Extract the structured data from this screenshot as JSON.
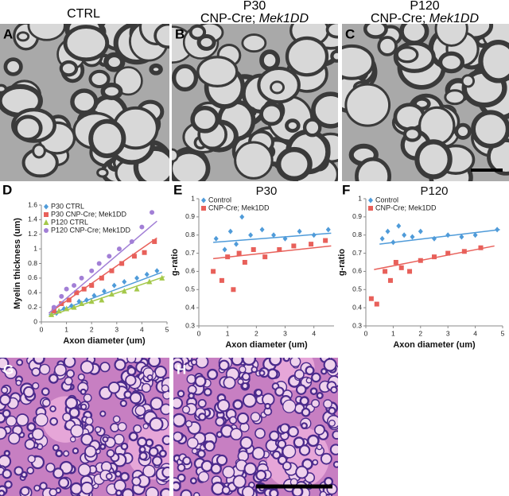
{
  "headers": {
    "a": {
      "line1": "CTRL"
    },
    "b": {
      "line1": "P30",
      "line2": "CNP-Cre;",
      "line2_italic": "Mek1DD"
    },
    "c": {
      "line1": "P120",
      "line2": "CNP-Cre;",
      "line2_italic": "Mek1DD"
    }
  },
  "panel_labels": [
    "A",
    "B",
    "C",
    "D",
    "E",
    "F",
    "G",
    "H"
  ],
  "chart_data": [
    {
      "type": "scatter",
      "xlabel": "Axon diameter (um)",
      "ylabel": "Myelin thickness (um)",
      "xlim": [
        0,
        5
      ],
      "xticks": [
        0,
        1,
        2,
        3,
        4,
        5
      ],
      "ylim": [
        0,
        1.6
      ],
      "yticks": [
        0,
        0.2,
        0.4,
        0.6,
        0.8,
        1,
        1.2,
        1.4,
        1.6
      ],
      "legend": "upper-left",
      "series": [
        {
          "name": "P30 CTRL",
          "color": "#4f9bd9",
          "marker": "diamond",
          "x": [
            0.6,
            0.9,
            1.2,
            1.5,
            1.8,
            2.1,
            2.5,
            2.9,
            3.3,
            3.8,
            4.2,
            4.6
          ],
          "values": [
            0.12,
            0.18,
            0.22,
            0.28,
            0.3,
            0.36,
            0.42,
            0.5,
            0.55,
            0.6,
            0.65,
            0.7
          ],
          "trend": {
            "x": [
              0.3,
              4.8
            ],
            "y": [
              0.1,
              0.68
            ]
          }
        },
        {
          "name": "P30 CNP-Cre; Mek1DD",
          "color": "#e8605a",
          "marker": "square",
          "x": [
            0.5,
            0.8,
            1.1,
            1.4,
            1.7,
            2.0,
            2.4,
            2.8,
            3.2,
            3.7,
            4.1,
            4.5
          ],
          "values": [
            0.15,
            0.25,
            0.3,
            0.4,
            0.45,
            0.5,
            0.6,
            0.7,
            0.8,
            0.9,
            0.95,
            1.1
          ],
          "trend": {
            "x": [
              0.3,
              4.6
            ],
            "y": [
              0.12,
              1.15
            ]
          }
        },
        {
          "name": "P120 CTRL",
          "color": "#a4c84a",
          "marker": "triangle",
          "x": [
            0.4,
            0.7,
            1.0,
            1.3,
            1.6,
            2.0,
            2.4,
            2.8,
            3.3,
            3.8,
            4.3,
            4.8
          ],
          "values": [
            0.1,
            0.15,
            0.18,
            0.2,
            0.25,
            0.28,
            0.3,
            0.38,
            0.42,
            0.45,
            0.55,
            0.6
          ],
          "trend": {
            "x": [
              0.3,
              4.9
            ],
            "y": [
              0.08,
              0.62
            ]
          }
        },
        {
          "name": "P120 CNP-Cre; Mek1DD",
          "color": "#a27fd6",
          "marker": "circle",
          "x": [
            0.5,
            0.8,
            1.0,
            1.3,
            1.6,
            2.0,
            2.3,
            2.7,
            3.1,
            3.6,
            4.0,
            4.4
          ],
          "values": [
            0.2,
            0.35,
            0.45,
            0.5,
            0.6,
            0.7,
            0.8,
            0.9,
            1.0,
            1.1,
            1.3,
            1.5
          ],
          "trend": {
            "x": [
              0.3,
              4.6
            ],
            "y": [
              0.12,
              1.38
            ]
          }
        }
      ]
    },
    {
      "type": "scatter",
      "title": "P30",
      "xlabel": "Axon diameter (um)",
      "ylabel": "g-ratio",
      "xlim": [
        0,
        4.7
      ],
      "xticks": [
        0,
        1,
        2,
        3,
        4
      ],
      "ylim": [
        0.3,
        1
      ],
      "yticks": [
        0.3,
        0.4,
        0.5,
        0.6,
        0.7,
        0.8,
        0.9,
        1
      ],
      "legend": "upper-left",
      "series": [
        {
          "name": "Control",
          "color": "#4f9bd9",
          "marker": "diamond",
          "x": [
            0.6,
            0.9,
            1.1,
            1.3,
            1.5,
            1.8,
            2.2,
            2.6,
            3.0,
            3.5,
            4.0,
            4.5
          ],
          "values": [
            0.78,
            0.72,
            0.82,
            0.75,
            0.9,
            0.8,
            0.83,
            0.8,
            0.78,
            0.82,
            0.8,
            0.83
          ],
          "trend": {
            "x": [
              0.5,
              4.6
            ],
            "y": [
              0.76,
              0.81
            ]
          }
        },
        {
          "name": "CNP-Cre; Mek1DD",
          "color": "#e8605a",
          "marker": "square",
          "x": [
            0.5,
            0.8,
            1.0,
            1.2,
            1.4,
            1.6,
            1.9,
            2.3,
            2.8,
            3.3,
            3.9,
            4.4
          ],
          "values": [
            0.6,
            0.55,
            0.68,
            0.5,
            0.7,
            0.65,
            0.72,
            0.68,
            0.72,
            0.74,
            0.75,
            0.77
          ],
          "trend": {
            "x": [
              0.5,
              4.6
            ],
            "y": [
              0.67,
              0.74
            ]
          }
        }
      ]
    },
    {
      "type": "scatter",
      "title": "P120",
      "xlabel": "Axon diameter (um)",
      "ylabel": "g-ratio",
      "xlim": [
        0,
        5
      ],
      "xticks": [
        0,
        1,
        2,
        3,
        4,
        5
      ],
      "ylim": [
        0.3,
        1
      ],
      "yticks": [
        0.3,
        0.4,
        0.5,
        0.6,
        0.7,
        0.8,
        0.9,
        1
      ],
      "legend": "upper-left",
      "series": [
        {
          "name": "Control",
          "color": "#4f9bd9",
          "marker": "diamond",
          "x": [
            0.6,
            0.8,
            1.0,
            1.2,
            1.4,
            1.7,
            2.0,
            2.5,
            3.0,
            3.5,
            4.0,
            4.8
          ],
          "values": [
            0.78,
            0.82,
            0.76,
            0.85,
            0.8,
            0.79,
            0.82,
            0.78,
            0.8,
            0.79,
            0.8,
            0.83
          ],
          "trend": {
            "x": [
              0.5,
              4.9
            ],
            "y": [
              0.75,
              0.83
            ]
          }
        },
        {
          "name": "CNP-Cre; Mek1DD",
          "color": "#e8605a",
          "marker": "square",
          "x": [
            0.2,
            0.4,
            0.7,
            0.9,
            1.1,
            1.3,
            1.6,
            2.0,
            2.5,
            3.0,
            3.6,
            4.2
          ],
          "values": [
            0.45,
            0.42,
            0.6,
            0.55,
            0.65,
            0.62,
            0.6,
            0.66,
            0.68,
            0.7,
            0.71,
            0.73
          ],
          "trend": {
            "x": [
              0.3,
              4.7
            ],
            "y": [
              0.61,
              0.74
            ]
          }
        }
      ]
    }
  ]
}
